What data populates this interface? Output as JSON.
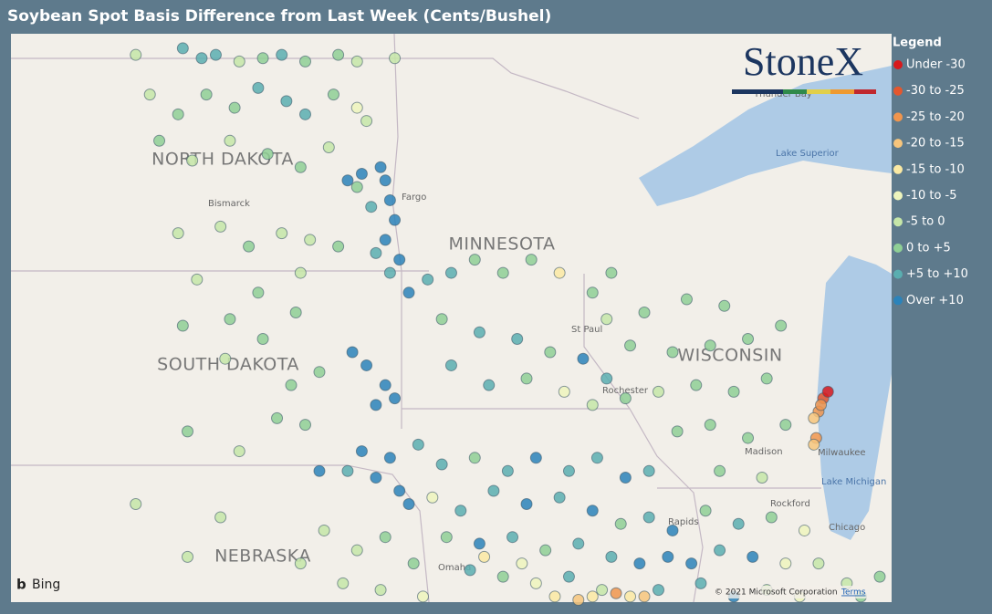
{
  "title": "Soybean Spot Basis Difference from Last Week (Cents/Bushel)",
  "logo": "StoneX",
  "legend": {
    "title": "Legend",
    "items": [
      {
        "label": "Under -30",
        "color": "#d7191c"
      },
      {
        "label": "-30 to -25",
        "color": "#e4572e"
      },
      {
        "label": "-25 to -20",
        "color": "#f0954d"
      },
      {
        "label": "-20 to -15",
        "color": "#f7c57c"
      },
      {
        "label": "-15 to -10",
        "color": "#fbe9a3"
      },
      {
        "label": "-10 to -5",
        "color": "#eef5bd"
      },
      {
        "label": "-5 to 0",
        "color": "#c6e6a8"
      },
      {
        "label": "0 to +5",
        "color": "#8fcf95"
      },
      {
        "label": "+5 to +10",
        "color": "#5aaeb0"
      },
      {
        "label": "Over +10",
        "color": "#2b83ba"
      }
    ]
  },
  "map_labels": {
    "states": [
      "NORTH DAKOTA",
      "SOUTH DAKOTA",
      "MINNESOTA",
      "WISCONSIN",
      "NEBRASKA"
    ],
    "cities": [
      "Bismarck",
      "Fargo",
      "St Paul",
      "Rochester",
      "Madison",
      "Milwaukee",
      "Rockford",
      "Chicago",
      "Omaha",
      "Rapids",
      "Thunder Bay"
    ],
    "water": [
      "Lake Superior",
      "Lake Michigan"
    ]
  },
  "attribution": {
    "provider": "Bing",
    "copyright": "© 2021 Microsoft Corporation",
    "terms": "Terms"
  },
  "points": [
    [
      -102.3,
      49.2,
      6
    ],
    [
      -101.3,
      49.3,
      8
    ],
    [
      -100.9,
      49.15,
      8
    ],
    [
      -100.6,
      49.2,
      8
    ],
    [
      -100.1,
      49.1,
      6
    ],
    [
      -99.6,
      49.15,
      7
    ],
    [
      -99.2,
      49.2,
      8
    ],
    [
      -98.7,
      49.1,
      7
    ],
    [
      -98.0,
      49.2,
      7
    ],
    [
      -97.6,
      49.1,
      6
    ],
    [
      -96.8,
      49.15,
      6
    ],
    [
      -102.0,
      48.6,
      6
    ],
    [
      -101.4,
      48.3,
      7
    ],
    [
      -100.8,
      48.6,
      7
    ],
    [
      -100.2,
      48.4,
      7
    ],
    [
      -99.7,
      48.7,
      8
    ],
    [
      -99.1,
      48.5,
      8
    ],
    [
      -98.7,
      48.3,
      8
    ],
    [
      -98.1,
      48.6,
      7
    ],
    [
      -97.6,
      48.4,
      5
    ],
    [
      -97.4,
      48.2,
      6
    ],
    [
      -101.8,
      47.9,
      7
    ],
    [
      -101.1,
      47.6,
      6
    ],
    [
      -100.3,
      47.9,
      6
    ],
    [
      -99.5,
      47.7,
      7
    ],
    [
      -98.8,
      47.5,
      7
    ],
    [
      -98.2,
      47.8,
      6
    ],
    [
      -97.6,
      47.2,
      7
    ],
    [
      -97.1,
      47.5,
      9
    ],
    [
      -97.0,
      47.3,
      9
    ],
    [
      -96.9,
      47.0,
      9
    ],
    [
      -96.8,
      46.7,
      9
    ],
    [
      -97.3,
      46.9,
      8
    ],
    [
      -97.8,
      47.3,
      9
    ],
    [
      -97.5,
      47.4,
      9
    ],
    [
      -97.0,
      46.4,
      9
    ],
    [
      -97.2,
      46.2,
      8
    ],
    [
      -96.9,
      45.9,
      8
    ],
    [
      -96.7,
      46.1,
      9
    ],
    [
      -96.5,
      45.6,
      9
    ],
    [
      -101.4,
      46.5,
      6
    ],
    [
      -100.5,
      46.6,
      6
    ],
    [
      -99.9,
      46.3,
      7
    ],
    [
      -99.2,
      46.5,
      6
    ],
    [
      -98.6,
      46.4,
      6
    ],
    [
      -98.0,
      46.3,
      7
    ],
    [
      -101.0,
      45.8,
      6
    ],
    [
      -99.7,
      45.6,
      7
    ],
    [
      -98.8,
      45.9,
      6
    ],
    [
      -101.3,
      45.1,
      7
    ],
    [
      -100.3,
      45.2,
      7
    ],
    [
      -99.6,
      44.9,
      7
    ],
    [
      -98.9,
      45.3,
      7
    ],
    [
      -98.4,
      44.4,
      7
    ],
    [
      -99.0,
      44.2,
      7
    ],
    [
      -100.4,
      44.6,
      6
    ],
    [
      -101.2,
      43.5,
      7
    ],
    [
      -100.1,
      43.2,
      6
    ],
    [
      -99.3,
      43.7,
      7
    ],
    [
      -98.7,
      43.6,
      7
    ],
    [
      -97.7,
      44.7,
      9
    ],
    [
      -97.4,
      44.5,
      9
    ],
    [
      -97.0,
      44.2,
      9
    ],
    [
      -96.8,
      44.0,
      9
    ],
    [
      -97.2,
      43.9,
      9
    ],
    [
      -97.5,
      43.2,
      9
    ],
    [
      -96.9,
      43.1,
      9
    ],
    [
      -97.2,
      42.8,
      9
    ],
    [
      -97.8,
      42.9,
      8
    ],
    [
      -98.4,
      42.9,
      9
    ],
    [
      -96.7,
      42.6,
      9
    ],
    [
      -96.5,
      42.4,
      9
    ],
    [
      -96.1,
      45.8,
      8
    ],
    [
      -95.6,
      45.9,
      8
    ],
    [
      -95.1,
      46.1,
      7
    ],
    [
      -94.5,
      45.9,
      7
    ],
    [
      -93.9,
      46.1,
      7
    ],
    [
      -93.3,
      45.9,
      4
    ],
    [
      -92.6,
      45.6,
      7
    ],
    [
      -92.2,
      45.9,
      7
    ],
    [
      -95.8,
      45.2,
      7
    ],
    [
      -95.0,
      45.0,
      8
    ],
    [
      -94.2,
      44.9,
      8
    ],
    [
      -93.5,
      44.7,
      7
    ],
    [
      -92.8,
      44.6,
      9
    ],
    [
      -92.3,
      44.3,
      8
    ],
    [
      -95.6,
      44.5,
      8
    ],
    [
      -94.8,
      44.2,
      8
    ],
    [
      -94.0,
      44.3,
      7
    ],
    [
      -93.2,
      44.1,
      5
    ],
    [
      -92.6,
      43.9,
      6
    ],
    [
      -91.9,
      44.0,
      7
    ],
    [
      -96.3,
      43.3,
      8
    ],
    [
      -95.8,
      43.0,
      8
    ],
    [
      -95.1,
      43.1,
      7
    ],
    [
      -94.4,
      42.9,
      8
    ],
    [
      -93.8,
      43.1,
      9
    ],
    [
      -93.1,
      42.9,
      8
    ],
    [
      -92.5,
      43.1,
      8
    ],
    [
      -91.9,
      42.8,
      9
    ],
    [
      -91.4,
      42.9,
      8
    ],
    [
      -96.0,
      42.5,
      5
    ],
    [
      -95.4,
      42.3,
      8
    ],
    [
      -94.7,
      42.6,
      8
    ],
    [
      -94.0,
      42.4,
      9
    ],
    [
      -93.3,
      42.5,
      8
    ],
    [
      -92.6,
      42.3,
      9
    ],
    [
      -92.0,
      42.1,
      7
    ],
    [
      -91.4,
      42.2,
      8
    ],
    [
      -90.9,
      42.0,
      9
    ],
    [
      -95.7,
      41.9,
      7
    ],
    [
      -95.0,
      41.8,
      9
    ],
    [
      -94.3,
      41.9,
      8
    ],
    [
      -93.6,
      41.7,
      7
    ],
    [
      -92.9,
      41.8,
      8
    ],
    [
      -92.2,
      41.6,
      8
    ],
    [
      -91.6,
      41.5,
      9
    ],
    [
      -91.0,
      41.6,
      9
    ],
    [
      -90.5,
      41.5,
      9
    ],
    [
      -95.2,
      41.4,
      8
    ],
    [
      -94.5,
      41.3,
      7
    ],
    [
      -93.8,
      41.2,
      5
    ],
    [
      -93.1,
      41.3,
      8
    ],
    [
      -92.4,
      41.1,
      6
    ],
    [
      -91.8,
      41.0,
      4
    ],
    [
      -91.2,
      41.1,
      8
    ],
    [
      -98.3,
      42.0,
      6
    ],
    [
      -97.6,
      41.7,
      6
    ],
    [
      -97.0,
      41.9,
      7
    ],
    [
      -96.4,
      41.5,
      7
    ],
    [
      -97.9,
      41.2,
      6
    ],
    [
      -97.1,
      41.1,
      6
    ],
    [
      -96.2,
      41.0,
      5
    ],
    [
      -98.8,
      41.5,
      6
    ],
    [
      -100.5,
      42.2,
      6
    ],
    [
      -101.2,
      41.6,
      6
    ],
    [
      -102.3,
      42.4,
      6
    ],
    [
      -92.3,
      45.2,
      6
    ],
    [
      -91.5,
      45.3,
      7
    ],
    [
      -90.6,
      45.5,
      7
    ],
    [
      -89.8,
      45.4,
      7
    ],
    [
      -91.8,
      44.8,
      7
    ],
    [
      -90.9,
      44.7,
      7
    ],
    [
      -90.1,
      44.8,
      7
    ],
    [
      -89.3,
      44.9,
      7
    ],
    [
      -88.6,
      45.1,
      7
    ],
    [
      -91.2,
      44.1,
      6
    ],
    [
      -90.4,
      44.2,
      7
    ],
    [
      -89.6,
      44.1,
      7
    ],
    [
      -88.9,
      44.3,
      7
    ],
    [
      -90.8,
      43.5,
      7
    ],
    [
      -90.1,
      43.6,
      7
    ],
    [
      -89.3,
      43.4,
      7
    ],
    [
      -88.5,
      43.6,
      7
    ],
    [
      -89.9,
      42.9,
      7
    ],
    [
      -89.0,
      42.8,
      6
    ],
    [
      -87.7,
      44.0,
      1
    ],
    [
      -87.8,
      43.8,
      2
    ],
    [
      -87.9,
      43.7,
      3
    ],
    [
      -87.75,
      43.9,
      2
    ],
    [
      -87.85,
      43.4,
      2
    ],
    [
      -87.9,
      43.3,
      3
    ],
    [
      -87.6,
      44.1,
      0
    ],
    [
      -90.2,
      42.3,
      7
    ],
    [
      -89.5,
      42.1,
      8
    ],
    [
      -88.8,
      42.2,
      7
    ],
    [
      -88.1,
      42.0,
      5
    ],
    [
      -89.9,
      41.7,
      8
    ],
    [
      -89.2,
      41.6,
      9
    ],
    [
      -88.5,
      41.5,
      5
    ],
    [
      -87.8,
      41.5,
      6
    ],
    [
      -87.2,
      41.2,
      6
    ],
    [
      -90.3,
      41.2,
      8
    ],
    [
      -89.6,
      41.0,
      9
    ],
    [
      -88.9,
      41.1,
      6
    ],
    [
      -88.2,
      41.0,
      5
    ],
    [
      -86.9,
      41.0,
      7
    ],
    [
      -86.5,
      41.3,
      7
    ],
    [
      -93.4,
      41.0,
      4
    ],
    [
      -92.9,
      40.95,
      3
    ],
    [
      -92.6,
      41.0,
      4
    ],
    [
      -92.1,
      41.05,
      2
    ],
    [
      -91.5,
      41.0,
      3
    ],
    [
      -94.9,
      41.6,
      4
    ],
    [
      -94.1,
      41.5,
      5
    ]
  ]
}
